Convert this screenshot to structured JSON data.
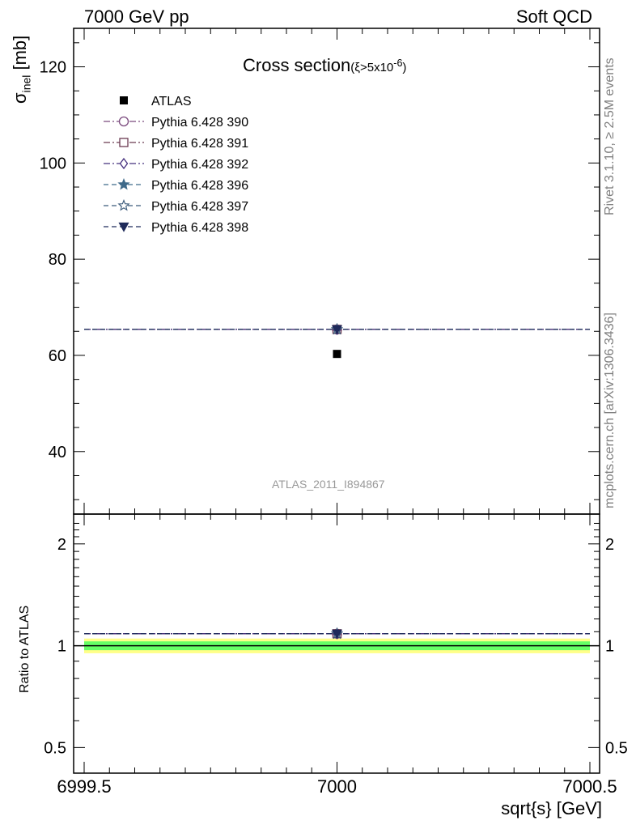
{
  "header": {
    "left": "7000 GeV pp",
    "right": "Soft QCD"
  },
  "side_text": {
    "rivet": "Rivet 3.1.10, ≥ 2.5M events",
    "mcplots": "mcplots.cern.ch [arXiv:1306.3436]"
  },
  "watermark": "ATLAS_2011_I894867",
  "chart_data": {
    "type": "scatter",
    "title": "Cross section",
    "title_cut": "(ξ>5x10",
    "title_cut_exp": "-6",
    "title_cut_close": ")",
    "ylabel_main": "σ",
    "ylabel_sub": "inel",
    "ylabel_unit": " [mb]",
    "ratio_ylabel": "Ratio to ATLAS",
    "xlabel": "sqrt{s} [GeV]",
    "x_range": [
      6999.5,
      7000.5
    ],
    "x_ticks": [
      "6999.5",
      "7000",
      "7000.5"
    ],
    "x_tick_values": [
      6999.5,
      7000,
      7000.5
    ],
    "y_range": [
      27,
      128
    ],
    "y_ticks": [
      40,
      60,
      80,
      100,
      120
    ],
    "ratio_range": [
      0.42,
      2.45
    ],
    "ratio_log": true,
    "ratio_ticks": [
      "0.5",
      "1",
      "2"
    ],
    "ratio_tick_values": [
      0.5,
      1,
      2
    ],
    "data": {
      "name": "ATLAS",
      "x": 7000,
      "y": 60.3,
      "ratio_band_inner": [
        0.97,
        1.03
      ],
      "ratio_band_outer": [
        0.95,
        1.05
      ],
      "band_inner_color": "#66ff66",
      "band_outer_color": "#ffff88"
    },
    "series": [
      {
        "name": "Pythia 6.428 390",
        "x": 7000,
        "y": 65.4,
        "ratio": 1.085,
        "color": "#7b4a7e",
        "marker": "circle-open",
        "dash": "dashdot"
      },
      {
        "name": "Pythia 6.428 391",
        "x": 7000,
        "y": 65.4,
        "ratio": 1.085,
        "color": "#6b3a52",
        "marker": "square-open",
        "dash": "dashdot"
      },
      {
        "name": "Pythia 6.428 392",
        "x": 7000,
        "y": 65.4,
        "ratio": 1.085,
        "color": "#45307e",
        "marker": "diamond-open",
        "dash": "dashdot"
      },
      {
        "name": "Pythia 6.428 396",
        "x": 7000,
        "y": 65.4,
        "ratio": 1.085,
        "color": "#3f6a8a",
        "marker": "star-filled",
        "dash": "dashed"
      },
      {
        "name": "Pythia 6.428 397",
        "x": 7000,
        "y": 65.4,
        "ratio": 1.085,
        "color": "#3a5a7a",
        "marker": "star-open",
        "dash": "dashed"
      },
      {
        "name": "Pythia 6.428 398",
        "x": 7000,
        "y": 65.4,
        "ratio": 1.085,
        "color": "#1f2a5a",
        "marker": "triangle-down-filled",
        "dash": "dashed"
      }
    ]
  }
}
